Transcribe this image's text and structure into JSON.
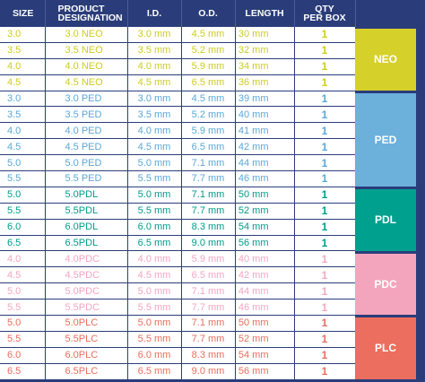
{
  "headers": {
    "size": "SIZE",
    "designation_line1": "PRODUCT",
    "designation_line2": "DESIGNATION",
    "id": "I.D.",
    "od": "O.D.",
    "length": "LENGTH",
    "qty_line1": "QTY",
    "qty_line2": "PER BOX"
  },
  "colors": {
    "header_bg": "#2a3d7a",
    "neo": "#cccc22",
    "ped": "#5aa7d8",
    "pdl": "#009b8a",
    "pdc": "#f3a6bf",
    "plc": "#e96d5c"
  },
  "groups": [
    {
      "label": "NEO",
      "color": "#cccc22",
      "band_color": "#d6d02a",
      "rows": [
        {
          "size": "3.0",
          "designation": "3.0 NEO",
          "id": "3.0 mm",
          "od": "4.5 mm",
          "length": "30 mm",
          "qty": "1"
        },
        {
          "size": "3.5",
          "designation": "3.5 NEO",
          "id": "3.5 mm",
          "od": "5.2 mm",
          "length": "32 mm",
          "qty": "1"
        },
        {
          "size": "4.0",
          "designation": "4.0 NEO",
          "id": "4.0 mm",
          "od": "5.9 mm",
          "length": "34 mm",
          "qty": "1"
        },
        {
          "size": "4.5",
          "designation": "4.5 NEO",
          "id": "4.5 mm",
          "od": "6.5 mm",
          "length": "36 mm",
          "qty": "1"
        }
      ]
    },
    {
      "label": "PED",
      "color": "#5aa7d8",
      "band_color": "#6cb0dc",
      "rows": [
        {
          "size": "3.0",
          "designation": "3.0 PED",
          "id": "3.0 mm",
          "od": "4.5 mm",
          "length": "39 mm",
          "qty": "1"
        },
        {
          "size": "3.5",
          "designation": "3.5 PED",
          "id": "3.5 mm",
          "od": "5.2 mm",
          "length": "40 mm",
          "qty": "1"
        },
        {
          "size": "4.0",
          "designation": "4.0 PED",
          "id": "4.0 mm",
          "od": "5.9 mm",
          "length": "41 mm",
          "qty": "1"
        },
        {
          "size": "4.5",
          "designation": "4.5 PED",
          "id": "4.5 mm",
          "od": "6.5 mm",
          "length": "42 mm",
          "qty": "1"
        },
        {
          "size": "5.0",
          "designation": "5.0 PED",
          "id": "5.0 mm",
          "od": "7.1 mm",
          "length": "44 mm",
          "qty": "1"
        },
        {
          "size": "5.5",
          "designation": "5.5 PED",
          "id": "5.5 mm",
          "od": "7.7 mm",
          "length": "46 mm",
          "qty": "1"
        }
      ]
    },
    {
      "label": "PDL",
      "color": "#009b8a",
      "band_color": "#00a08e",
      "rows": [
        {
          "size": "5.0",
          "designation": "5.0PDL",
          "id": "5.0 mm",
          "od": "7.1 mm",
          "length": "50 mm",
          "qty": "1"
        },
        {
          "size": "5.5",
          "designation": "5.5PDL",
          "id": "5.5 mm",
          "od": "7.7 mm",
          "length": "52 mm",
          "qty": "1"
        },
        {
          "size": "6.0",
          "designation": "6.0PDL",
          "id": "6.0 mm",
          "od": "8.3 mm",
          "length": "54 mm",
          "qty": "1"
        },
        {
          "size": "6.5",
          "designation": "6.5PDL",
          "id": "6.5 mm",
          "od": "9.0 mm",
          "length": "56 mm",
          "qty": "1"
        }
      ]
    },
    {
      "label": "PDC",
      "color": "#f3a6bf",
      "band_color": "#f4a5be",
      "rows": [
        {
          "size": "4.0",
          "designation": "4.0PDC",
          "id": "4.0 mm",
          "od": "5.9 mm",
          "length": "40 mm",
          "qty": "1"
        },
        {
          "size": "4.5",
          "designation": "4.5PDC",
          "id": "4.5 mm",
          "od": "6.5 mm",
          "length": "42 mm",
          "qty": "1"
        },
        {
          "size": "5.0",
          "designation": "5.0PDC",
          "id": "5.0 mm",
          "od": "7.1 mm",
          "length": "44 mm",
          "qty": "1"
        },
        {
          "size": "5.5",
          "designation": "5.5PDC",
          "id": "5.5 mm",
          "od": "7.7 mm",
          "length": "46 mm",
          "qty": "1"
        }
      ]
    },
    {
      "label": "PLC",
      "color": "#e96d5c",
      "band_color": "#ec6e5e",
      "rows": [
        {
          "size": "5.0",
          "designation": "5.0PLC",
          "id": "5.0 mm",
          "od": "7.1 mm",
          "length": "50 mm",
          "qty": "1"
        },
        {
          "size": "5.5",
          "designation": "5.5PLC",
          "id": "5.5 mm",
          "od": "7.7 mm",
          "length": "52 mm",
          "qty": "1"
        },
        {
          "size": "6.0",
          "designation": "6.0PLC",
          "id": "6.0 mm",
          "od": "8.3 mm",
          "length": "54 mm",
          "qty": "1"
        },
        {
          "size": "6.5",
          "designation": "6.5PLC",
          "id": "6.5 mm",
          "od": "9.0 mm",
          "length": "56 mm",
          "qty": "1"
        }
      ]
    }
  ]
}
